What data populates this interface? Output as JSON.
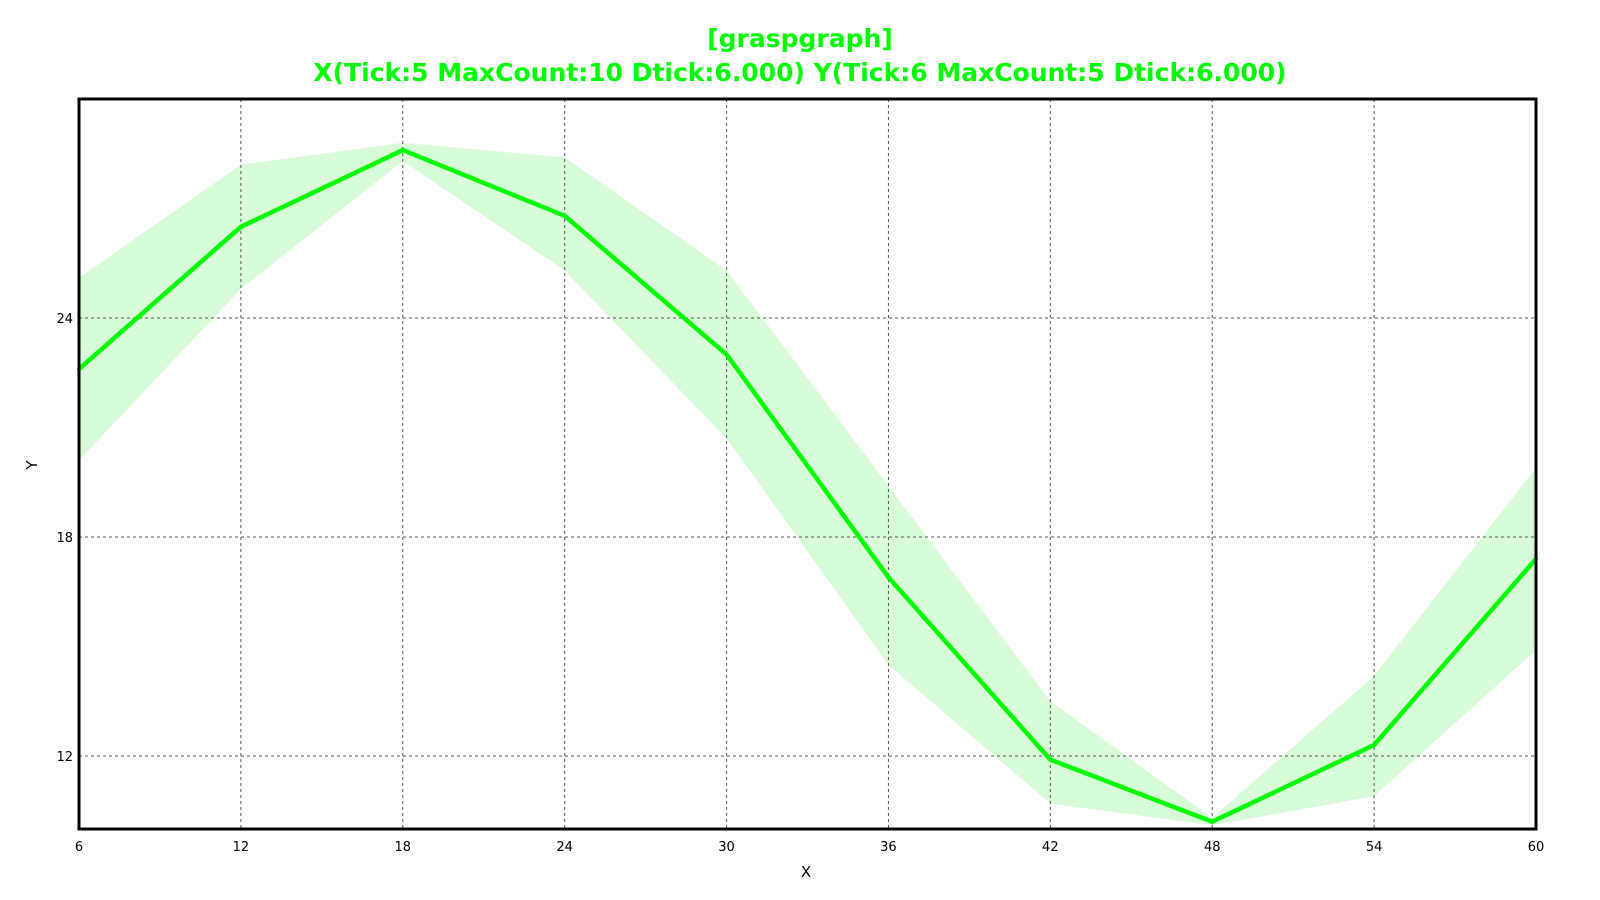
{
  "chart_data": {
    "type": "line",
    "title": "[graspgraph]",
    "subtitle": "X(Tick:5 MaxCount:10 Dtick:6.000) Y(Tick:6 MaxCount:5 Dtick:6.000)",
    "xlabel": "X",
    "ylabel": "Y",
    "xlim": [
      6,
      60
    ],
    "ylim": [
      10,
      30
    ],
    "x_ticks": [
      6,
      12,
      18,
      24,
      30,
      36,
      42,
      48,
      54,
      60
    ],
    "y_ticks": [
      12,
      18,
      24
    ],
    "grid": true,
    "legend": "none",
    "series": [
      {
        "x": [
          6,
          12,
          18,
          24,
          30,
          36,
          42,
          48,
          54,
          60
        ],
        "y": [
          22.6,
          26.5,
          28.6,
          26.8,
          23.0,
          16.9,
          11.9,
          10.2,
          12.3,
          17.4
        ],
        "lower": [
          20.1,
          24.8,
          28.3,
          25.3,
          20.7,
          14.5,
          10.7,
          10.1,
          10.9,
          14.9
        ],
        "upper": [
          25.1,
          28.2,
          28.8,
          28.4,
          25.3,
          19.4,
          13.5,
          10.3,
          14.2,
          19.9
        ]
      }
    ],
    "colors": {
      "title": "#00ff00",
      "line": "#00ff00",
      "band": "#d8fcd8",
      "grid": "#555555",
      "frame": "#000000"
    }
  }
}
